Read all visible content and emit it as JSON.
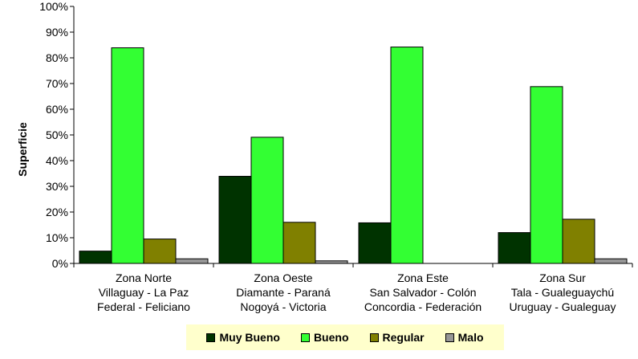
{
  "chart_data": {
    "type": "bar",
    "ylabel": "Superficie",
    "xlabel": "",
    "ylim": [
      0,
      100
    ],
    "yticks": [
      "0%",
      "10%",
      "20%",
      "30%",
      "40%",
      "50%",
      "60%",
      "70%",
      "80%",
      "90%",
      "100%"
    ],
    "grid": false,
    "legend_position": "bottom",
    "categories": [
      [
        "Zona Norte",
        "Villaguay - La Paz",
        "Federal - Feliciano"
      ],
      [
        "Zona Oeste",
        "Diamante - Paraná",
        "Nogoyá - Victoria"
      ],
      [
        "Zona Este",
        "San Salvador - Colón",
        "Concordia - Federación"
      ],
      [
        "Zona Sur",
        "Tala - Gualeguaychú",
        "Uruguay - Gualeguay"
      ]
    ],
    "series": [
      {
        "name": "Muy Bueno",
        "color": "#003300",
        "values": [
          4.8,
          33.9,
          15.8,
          12.0
        ]
      },
      {
        "name": "Bueno",
        "color": "#33ff33",
        "values": [
          83.9,
          49.1,
          84.2,
          68.8
        ]
      },
      {
        "name": "Regular",
        "color": "#808000",
        "values": [
          9.5,
          16.0,
          0.0,
          17.2
        ]
      },
      {
        "name": "Malo",
        "color": "#969696",
        "values": [
          1.8,
          1.0,
          0.0,
          1.8
        ]
      }
    ]
  }
}
